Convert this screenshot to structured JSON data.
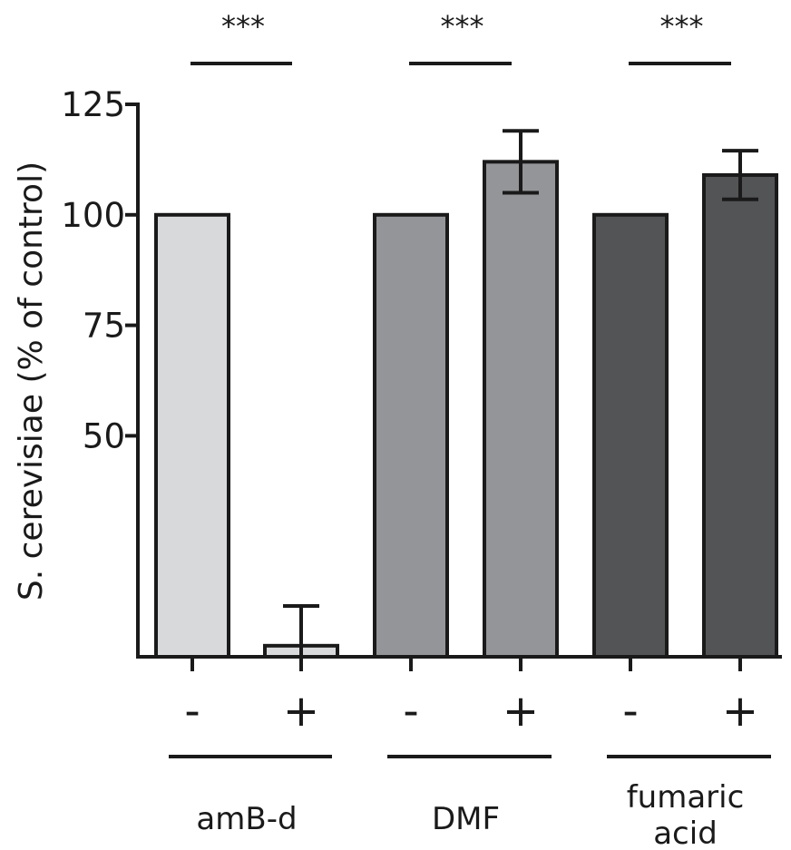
{
  "chart_data": {
    "type": "bar",
    "ylabel": "S.  cerevisiae  (% of control)",
    "ylim": [
      0,
      125
    ],
    "yticks": [
      50,
      75,
      100,
      125
    ],
    "grid": false,
    "categories": [
      "-",
      "+",
      "-",
      "+",
      "-",
      "+"
    ],
    "values": [
      100,
      2.5,
      100,
      112,
      100,
      109
    ],
    "errors": [
      0,
      9,
      0,
      7,
      0,
      5.5
    ],
    "bar_colors": [
      "#d8d9db",
      "#d8d9db",
      "#949598",
      "#949598",
      "#535456",
      "#535456"
    ],
    "groups": [
      {
        "label_lines": [
          "amB-d"
        ],
        "significance": "***"
      },
      {
        "label_lines": [
          "DMF"
        ],
        "significance": "***"
      },
      {
        "label_lines": [
          "fumaric",
          "acid"
        ],
        "significance": "***"
      }
    ]
  }
}
